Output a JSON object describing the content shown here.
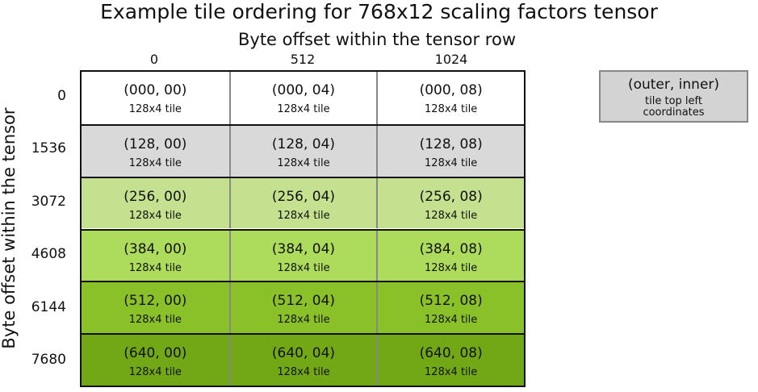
{
  "title": "Example tile ordering for 768x12 scaling factors tensor",
  "col_axis_title": "Byte offset within the tensor row",
  "row_axis_title": "Byte offset within the tensor",
  "col_ticks": [
    "0",
    "512",
    "1024"
  ],
  "row_ticks": [
    "0",
    "1536",
    "3072",
    "4608",
    "6144",
    "7680"
  ],
  "tile_label": "128x4 tile",
  "row_colors": [
    "#ffffff",
    "#d9d9d9",
    "#c5e08f",
    "#addb5c",
    "#8bc128",
    "#72a816"
  ],
  "cells": [
    [
      "(000, 00)",
      "(000, 04)",
      "(000, 08)"
    ],
    [
      "(128, 00)",
      "(128, 04)",
      "(128, 08)"
    ],
    [
      "(256, 00)",
      "(256, 04)",
      "(256, 08)"
    ],
    [
      "(384, 00)",
      "(384, 04)",
      "(384, 08)"
    ],
    [
      "(512, 00)",
      "(512, 04)",
      "(512, 08)"
    ],
    [
      "(640, 00)",
      "(640, 04)",
      "(640, 08)"
    ]
  ],
  "legend": {
    "main": "(outer, inner)",
    "sub_line1": "tile top left",
    "sub_line2": "coordinates",
    "color": "#d3d3d3"
  }
}
